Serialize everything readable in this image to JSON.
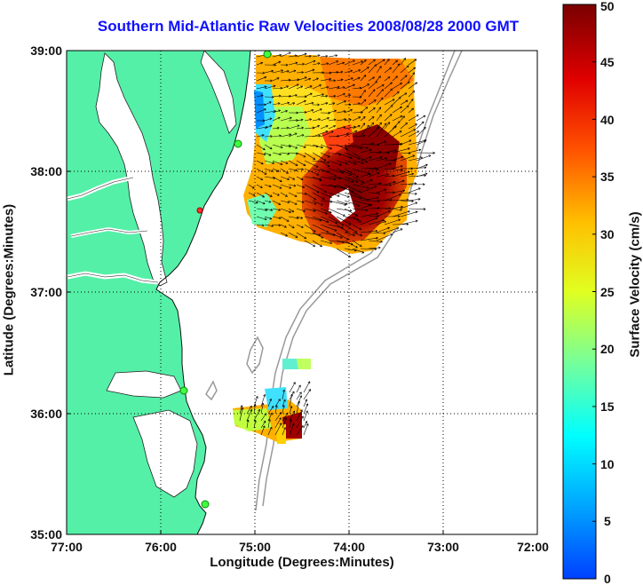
{
  "title": "Southern Mid-Atlantic Raw Velocities 2008/08/28 2000 GMT",
  "xlabel": "Longitude (Degrees:Minutes)",
  "ylabel": "Latitude (Degrees:Minutes)",
  "colorbar_label": "Surface Velocity (cm/s)",
  "x_ticks": [
    "77:00",
    "76:00",
    "75:00",
    "74:00",
    "73:00",
    "72:00"
  ],
  "y_ticks": [
    "39:00",
    "38:00",
    "37:00",
    "36:00",
    "35:00"
  ],
  "colorbar_ticks": [
    "50",
    "45",
    "40",
    "35",
    "30",
    "25",
    "20",
    "15",
    "10",
    "5",
    "0"
  ],
  "colors": {
    "land": "#55f0a8",
    "title": "#1010ff",
    "grid": "#000000"
  },
  "chart_data": {
    "type": "heatmap",
    "title": "Southern Mid-Atlantic Raw Velocities 2008/08/28 2000 GMT",
    "xlabel": "Longitude (Degrees:Minutes)",
    "ylabel": "Latitude (Degrees:Minutes)",
    "x_range": [
      -77.0,
      -72.0
    ],
    "y_range": [
      35.0,
      39.0
    ],
    "colorbar_range": [
      0,
      50
    ],
    "colorbar_unit": "cm/s",
    "grid": true
  }
}
